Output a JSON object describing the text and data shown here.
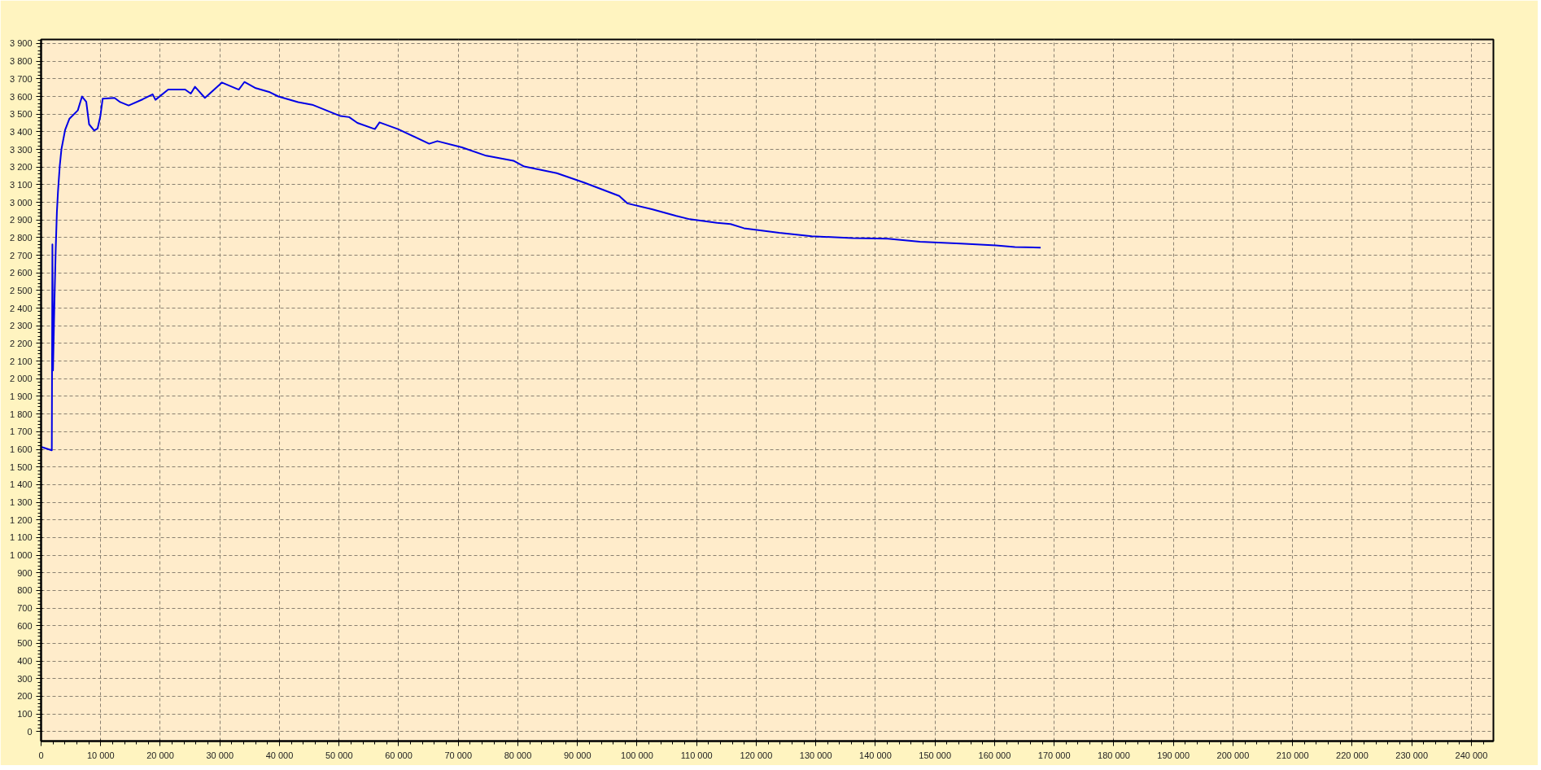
{
  "chart_data": {
    "type": "line",
    "x": [
      0,
      1800,
      1900,
      2000,
      2270,
      2460,
      2650,
      2840,
      3130,
      3410,
      4030,
      4740,
      6160,
      6870,
      7580,
      8060,
      8910,
      9480,
      9950,
      10330,
      12320,
      13270,
      14690,
      17060,
      18720,
      19190,
      21330,
      24170,
      25120,
      25830,
      27490,
      30330,
      33170,
      34120,
      36020,
      38390,
      39810,
      43130,
      45500,
      47870,
      50240,
      51690,
      53080,
      56010,
      56790,
      59890,
      65130,
      66490,
      70590,
      74690,
      79250,
      81070,
      86540,
      91090,
      97020,
      98380,
      102480,
      106580,
      108860,
      113410,
      115690,
      117950,
      123860,
      129320,
      136140,
      142050,
      147500,
      154320,
      160230,
      163410,
      167730
    ],
    "series": [
      {
        "color": "#0000e6",
        "values": [
          1614,
          1594,
          2762,
          2047,
          2478,
          2739,
          2944,
          3063,
          3205,
          3300,
          3410,
          3473,
          3521,
          3600,
          3570,
          3442,
          3407,
          3418,
          3489,
          3587,
          3592,
          3568,
          3549,
          3584,
          3612,
          3581,
          3639,
          3639,
          3616,
          3655,
          3592,
          3679,
          3639,
          3682,
          3647,
          3624,
          3600,
          3568,
          3553,
          3521,
          3489,
          3483,
          3450,
          3415,
          3453,
          3415,
          3332,
          3347,
          3312,
          3264,
          3236,
          3203,
          3165,
          3112,
          3036,
          2994,
          2961,
          2923,
          2904,
          2884,
          2877,
          2853,
          2827,
          2808,
          2797,
          2794,
          2777,
          2766,
          2756,
          2747,
          2743
        ]
      }
    ],
    "xlim": [
      0,
      243700
    ],
    "ylim": [
      -54,
      3923
    ],
    "xticks": [
      0,
      {
        "value": 10000,
        "label": "10 000"
      },
      {
        "value": 20000,
        "label": "20 000"
      },
      {
        "value": 30000,
        "label": "30 000"
      },
      {
        "value": 40000,
        "label": "40 000"
      },
      {
        "value": 50000,
        "label": "50 000"
      },
      {
        "value": 60000,
        "label": "60 000"
      },
      {
        "value": 70000,
        "label": "70 000"
      },
      {
        "value": 80000,
        "label": "80 000"
      },
      {
        "value": 90000,
        "label": "90 000"
      },
      {
        "value": 100000,
        "label": "100 000"
      },
      {
        "value": 110000,
        "label": "110 000"
      },
      {
        "value": 120000,
        "label": "120 000"
      },
      {
        "value": 130000,
        "label": "130 000"
      },
      {
        "value": 140000,
        "label": "140 000"
      },
      {
        "value": 150000,
        "label": "150 000"
      },
      {
        "value": 160000,
        "label": "160 000"
      },
      {
        "value": 170000,
        "label": "170 000"
      },
      {
        "value": 180000,
        "label": "180 000"
      },
      {
        "value": 190000,
        "label": "190 000"
      },
      {
        "value": 200000,
        "label": "200 000"
      },
      {
        "value": 210000,
        "label": "210 000"
      },
      {
        "value": 220000,
        "label": "220 000"
      },
      {
        "value": 230000,
        "label": "230 000"
      },
      {
        "value": 240000,
        "label": "240 000"
      }
    ],
    "yticks": [
      0,
      100,
      200,
      300,
      400,
      500,
      600,
      700,
      800,
      900,
      {
        "value": 1000,
        "label": "1 000"
      },
      {
        "value": 1100,
        "label": "1 100"
      },
      {
        "value": 1200,
        "label": "1 200"
      },
      {
        "value": 1300,
        "label": "1 300"
      },
      {
        "value": 1400,
        "label": "1 400"
      },
      {
        "value": 1500,
        "label": "1 500"
      },
      {
        "value": 1600,
        "label": "1 600"
      },
      {
        "value": 1700,
        "label": "1 700"
      },
      {
        "value": 1800,
        "label": "1 800"
      },
      {
        "value": 1900,
        "label": "1 900"
      },
      {
        "value": 2000,
        "label": "2 000"
      },
      {
        "value": 2100,
        "label": "2 100"
      },
      {
        "value": 2200,
        "label": "2 200"
      },
      {
        "value": 2300,
        "label": "2 300"
      },
      {
        "value": 2400,
        "label": "2 400"
      },
      {
        "value": 2500,
        "label": "2 500"
      },
      {
        "value": 2600,
        "label": "2 600"
      },
      {
        "value": 2700,
        "label": "2 700"
      },
      {
        "value": 2800,
        "label": "2 800"
      },
      {
        "value": 2900,
        "label": "2 900"
      },
      {
        "value": 3000,
        "label": "3 000"
      },
      {
        "value": 3100,
        "label": "3 100"
      },
      {
        "value": 3200,
        "label": "3 200"
      },
      {
        "value": 3300,
        "label": "3 300"
      },
      {
        "value": 3400,
        "label": "3 400"
      },
      {
        "value": 3500,
        "label": "3 500"
      },
      {
        "value": 3600,
        "label": "3 600"
      },
      {
        "value": 3700,
        "label": "3 700"
      },
      {
        "value": 3800,
        "label": "3 800"
      },
      {
        "value": 3900,
        "label": "3 900"
      }
    ],
    "grid": true,
    "line_style": "solid"
  }
}
